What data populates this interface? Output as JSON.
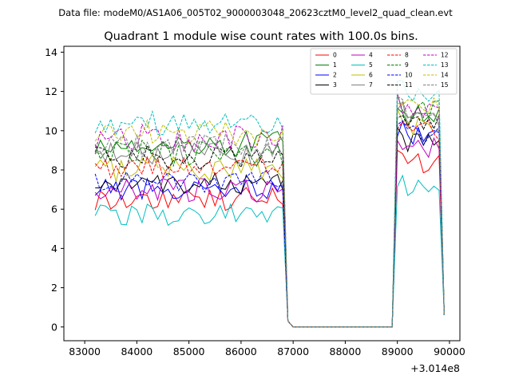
{
  "chart_data": {
    "type": "line",
    "suptitle": "Data file: modeM0/AS1A06_005T02_9000003048_20623cztM0_level2_quad_clean.evt",
    "title": "Quadrant 1 module wise count rates with 100.0s bins.",
    "xlabel": "",
    "ylabel": "",
    "x_offset_label": "+3.014e8",
    "xlim": [
      82600,
      90200
    ],
    "ylim": [
      -0.7,
      14.3
    ],
    "x_ticks": [
      83000,
      84000,
      85000,
      86000,
      87000,
      88000,
      89000,
      90000
    ],
    "x_tick_labels": [
      "83000",
      "84000",
      "85000",
      "86000",
      "87000",
      "88000",
      "89000",
      "90000"
    ],
    "y_ticks": [
      0,
      2,
      4,
      6,
      8,
      10,
      12,
      14
    ],
    "y_tick_labels": [
      "0",
      "2",
      "4",
      "6",
      "8",
      "10",
      "12",
      "14"
    ],
    "grid": false,
    "legend": {
      "position": "top-right",
      "columns": 4
    },
    "segments": {
      "segment_1": {
        "x_start": 83200,
        "x_end": 86800,
        "step": 100
      },
      "gap_x": [
        86900,
        87000,
        88900
      ],
      "segment_2": {
        "x_start": 89000,
        "x_end": 89800,
        "step": 100
      },
      "final_x": 89900
    },
    "series": [
      {
        "name": "0",
        "color": "#ff0000",
        "dashed": false,
        "base1": 6.5,
        "amp1": 0.4,
        "base2": 8.3,
        "end": 0.6
      },
      {
        "name": "1",
        "color": "#008000",
        "dashed": false,
        "base1": 9.3,
        "amp1": 0.45,
        "base2": 10.8,
        "end": 0.6
      },
      {
        "name": "2",
        "color": "#0000ff",
        "dashed": false,
        "base1": 7.0,
        "amp1": 0.35,
        "base2": 9.7,
        "end": 0.6
      },
      {
        "name": "3",
        "color": "#000000",
        "dashed": false,
        "base1": 7.3,
        "amp1": 0.35,
        "base2": 9.4,
        "end": 0.6
      },
      {
        "name": "4",
        "color": "#bf00bf",
        "dashed": false,
        "base1": 7.0,
        "amp1": 0.4,
        "base2": 9.1,
        "end": 0.6
      },
      {
        "name": "5",
        "color": "#00bfbf",
        "dashed": false,
        "base1": 5.7,
        "amp1": 0.35,
        "base2": 7.1,
        "end": 0.6
      },
      {
        "name": "6",
        "color": "#bfbf00",
        "dashed": false,
        "base1": 8.1,
        "amp1": 0.45,
        "base2": 10.3,
        "end": 0.6
      },
      {
        "name": "7",
        "color": "#808080",
        "dashed": false,
        "base1": 8.8,
        "amp1": 0.4,
        "base2": 10.6,
        "end": 0.6
      },
      {
        "name": "8",
        "color": "#ff0000",
        "dashed": true,
        "base1": 8.1,
        "amp1": 0.35,
        "base2": 10.0,
        "end": 0.6
      },
      {
        "name": "9",
        "color": "#008000",
        "dashed": true,
        "base1": 8.9,
        "amp1": 0.45,
        "base2": 11.0,
        "end": 0.6
      },
      {
        "name": "10",
        "color": "#0000ff",
        "dashed": true,
        "base1": 7.4,
        "amp1": 0.35,
        "base2": 9.8,
        "end": 0.6
      },
      {
        "name": "11",
        "color": "#000000",
        "dashed": true,
        "base1": 8.6,
        "amp1": 0.4,
        "base2": 10.5,
        "end": 0.6
      },
      {
        "name": "12",
        "color": "#bf00bf",
        "dashed": true,
        "base1": 9.6,
        "amp1": 0.45,
        "base2": 11.0,
        "end": 0.6
      },
      {
        "name": "13",
        "color": "#00bfbf",
        "dashed": true,
        "base1": 10.4,
        "amp1": 0.4,
        "base2": 12.0,
        "end": 0.6
      },
      {
        "name": "14",
        "color": "#bfbf00",
        "dashed": true,
        "base1": 9.9,
        "amp1": 0.4,
        "base2": 11.2,
        "end": 0.6
      },
      {
        "name": "15",
        "color": "#808080",
        "dashed": true,
        "base1": 9.2,
        "amp1": 0.4,
        "base2": 10.8,
        "end": 0.6
      }
    ]
  }
}
